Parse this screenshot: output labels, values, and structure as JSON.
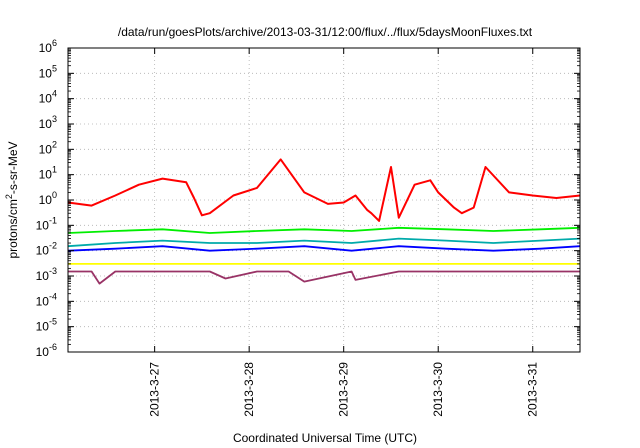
{
  "chart_data": {
    "type": "line",
    "title": "/data/run/goesPlots/archive/2013-03-31/12:00/flux/../flux/5daysMoonFluxes.txt",
    "xlabel": "Coordinated Universal Time (UTC)",
    "ylabel": {
      "prefix": "protons/cm",
      "sup": "2",
      "suffix": "-s-sr-MeV"
    },
    "y_scale": "log",
    "ylim": [
      1e-06,
      1000000.0
    ],
    "y_ticks": [
      {
        "value": 1e-06,
        "base": "10",
        "exp": "-6"
      },
      {
        "value": 1e-05,
        "base": "10",
        "exp": "-5"
      },
      {
        "value": 0.0001,
        "base": "10",
        "exp": "-4"
      },
      {
        "value": 0.001,
        "base": "10",
        "exp": "-3"
      },
      {
        "value": 0.01,
        "base": "10",
        "exp": "-2"
      },
      {
        "value": 0.1,
        "base": "10",
        "exp": "-1"
      },
      {
        "value": 1.0,
        "base": "10",
        "exp": "0"
      },
      {
        "value": 10.0,
        "base": "10",
        "exp": "1"
      },
      {
        "value": 100.0,
        "base": "10",
        "exp": "2"
      },
      {
        "value": 1000.0,
        "base": "10",
        "exp": "3"
      },
      {
        "value": 10000.0,
        "base": "10",
        "exp": "4"
      },
      {
        "value": 100000.0,
        "base": "10",
        "exp": "5"
      },
      {
        "value": 1000000.0,
        "base": "10",
        "exp": "6"
      }
    ],
    "x_range": [
      "2013-03-26T02:00",
      "2013-03-31T12:00"
    ],
    "x_ticks": [
      {
        "value": "2013-03-27T00:00",
        "label": "2013-3-27"
      },
      {
        "value": "2013-03-28T00:00",
        "label": "2013-3-28"
      },
      {
        "value": "2013-03-29T00:00",
        "label": "2013-3-29"
      },
      {
        "value": "2013-03-30T00:00",
        "label": "2013-3-30"
      },
      {
        "value": "2013-03-31T00:00",
        "label": "2013-3-31"
      }
    ],
    "grid": true,
    "legend": "none",
    "series": [
      {
        "color": "#ff0000",
        "x": [
          "2013-03-26T02:00",
          "2013-03-26T08:00",
          "2013-03-26T14:00",
          "2013-03-26T20:00",
          "2013-03-27T02:00",
          "2013-03-27T08:00",
          "2013-03-27T10:00",
          "2013-03-27T12:00",
          "2013-03-27T14:00",
          "2013-03-27T20:00",
          "2013-03-28T02:00",
          "2013-03-28T08:00",
          "2013-03-28T14:00",
          "2013-03-28T20:00",
          "2013-03-29T00:00",
          "2013-03-29T03:00",
          "2013-03-29T06:00",
          "2013-03-29T07:00",
          "2013-03-29T09:00",
          "2013-03-29T12:00",
          "2013-03-29T14:00",
          "2013-03-29T18:00",
          "2013-03-29T22:00",
          "2013-03-30T00:00",
          "2013-03-30T04:00",
          "2013-03-30T06:00",
          "2013-03-30T09:00",
          "2013-03-30T12:00",
          "2013-03-30T18:00",
          "2013-03-31T00:00",
          "2013-03-31T06:00",
          "2013-03-31T12:00"
        ],
        "y": [
          0.8,
          0.6,
          1.5,
          4,
          7,
          5,
          1.2,
          0.25,
          0.3,
          1.5,
          3,
          40,
          2,
          0.7,
          0.8,
          1.5,
          0.4,
          0.3,
          0.15,
          20,
          0.2,
          4,
          6,
          2,
          0.5,
          0.3,
          0.5,
          20,
          2,
          1.5,
          1.2,
          1.5
        ]
      },
      {
        "color": "#00ee00",
        "x": [
          "2013-03-26T02:00",
          "2013-03-26T14:00",
          "2013-03-27T02:00",
          "2013-03-27T14:00",
          "2013-03-28T02:00",
          "2013-03-28T14:00",
          "2013-03-29T02:00",
          "2013-03-29T14:00",
          "2013-03-30T02:00",
          "2013-03-30T14:00",
          "2013-03-31T02:00",
          "2013-03-31T12:00"
        ],
        "y": [
          0.05,
          0.06,
          0.07,
          0.05,
          0.06,
          0.07,
          0.06,
          0.08,
          0.07,
          0.06,
          0.07,
          0.08
        ]
      },
      {
        "color": "#00aaaa",
        "x": [
          "2013-03-26T02:00",
          "2013-03-26T14:00",
          "2013-03-27T02:00",
          "2013-03-27T14:00",
          "2013-03-28T02:00",
          "2013-03-28T14:00",
          "2013-03-29T02:00",
          "2013-03-29T14:00",
          "2013-03-30T02:00",
          "2013-03-30T14:00",
          "2013-03-31T02:00",
          "2013-03-31T12:00"
        ],
        "y": [
          0.015,
          0.02,
          0.025,
          0.02,
          0.02,
          0.025,
          0.02,
          0.03,
          0.025,
          0.02,
          0.025,
          0.03
        ]
      },
      {
        "color": "#0000ff",
        "x": [
          "2013-03-26T02:00",
          "2013-03-26T14:00",
          "2013-03-27T02:00",
          "2013-03-27T14:00",
          "2013-03-28T02:00",
          "2013-03-28T14:00",
          "2013-03-29T02:00",
          "2013-03-29T14:00",
          "2013-03-30T02:00",
          "2013-03-30T14:00",
          "2013-03-31T02:00",
          "2013-03-31T12:00"
        ],
        "y": [
          0.01,
          0.012,
          0.015,
          0.01,
          0.012,
          0.015,
          0.01,
          0.015,
          0.012,
          0.01,
          0.012,
          0.015
        ]
      },
      {
        "color": "#ffff00",
        "x": [
          "2013-03-26T02:00",
          "2013-03-26T14:00",
          "2013-03-27T02:00",
          "2013-03-27T14:00",
          "2013-03-28T02:00",
          "2013-03-28T14:00",
          "2013-03-29T02:00",
          "2013-03-29T14:00",
          "2013-03-30T02:00",
          "2013-03-30T14:00",
          "2013-03-31T02:00",
          "2013-03-31T12:00"
        ],
        "y": [
          0.003,
          0.003,
          0.003,
          0.003,
          0.003,
          0.003,
          0.003,
          0.003,
          0.003,
          0.003,
          0.003,
          0.003
        ]
      },
      {
        "color": "#993366",
        "x": [
          "2013-03-26T02:00",
          "2013-03-26T08:00",
          "2013-03-26T10:00",
          "2013-03-26T14:00",
          "2013-03-27T02:00",
          "2013-03-27T14:00",
          "2013-03-27T18:00",
          "2013-03-28T02:00",
          "2013-03-28T10:00",
          "2013-03-28T14:00",
          "2013-03-29T02:00",
          "2013-03-29T03:00",
          "2013-03-29T14:00",
          "2013-03-30T02:00",
          "2013-03-30T14:00",
          "2013-03-31T02:00",
          "2013-03-31T12:00"
        ],
        "y": [
          0.0015,
          0.0015,
          0.0005,
          0.0015,
          0.0015,
          0.0015,
          0.0008,
          0.0015,
          0.0015,
          0.0006,
          0.0015,
          0.0007,
          0.0015,
          0.0015,
          0.0015,
          0.0015,
          0.0015
        ]
      }
    ]
  }
}
